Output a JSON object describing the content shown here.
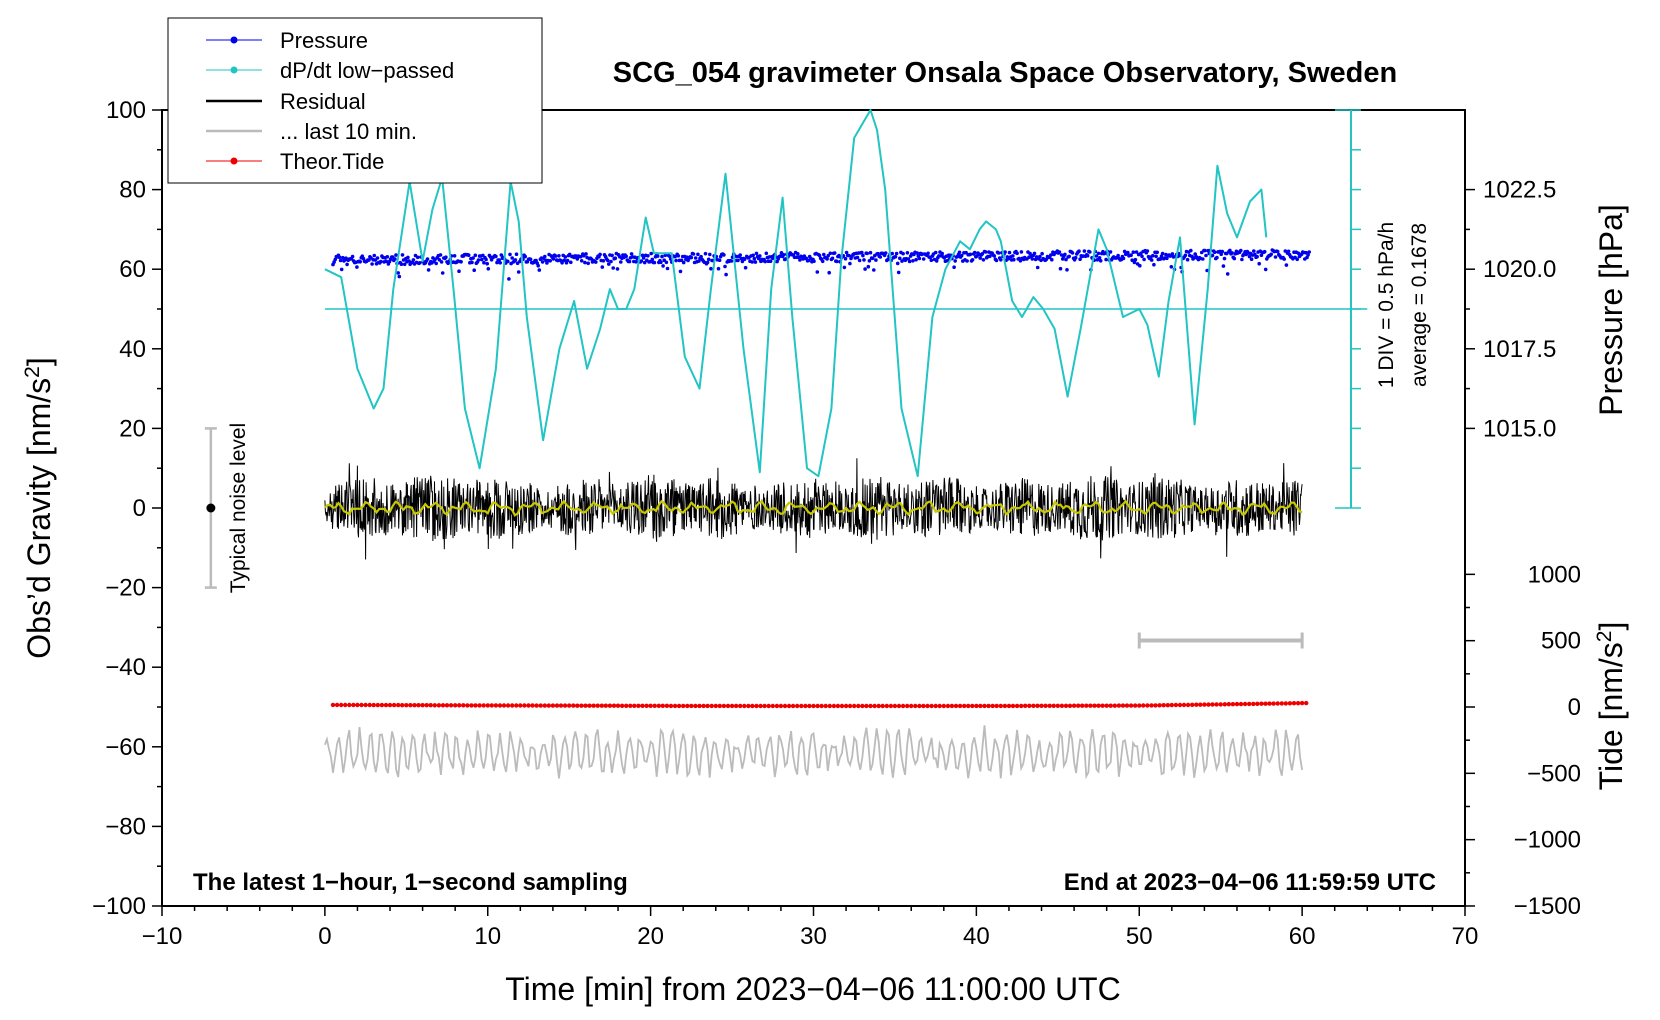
{
  "chart_data": {
    "type": "line",
    "title": "SCG_054 gravimeter Onsala Space Observatory, Sweden",
    "xlabel": "Time [min] from 2023−04−06 11:00:00 UTC",
    "ylabel_left": "Obs’d Gravity [nm/s",
    "ylabel_left_sup": "2",
    "ylabel_left_end": "]",
    "ylabel_right_pressure": "Pressure [hPa]",
    "ylabel_right_tide": "Tide [nm/s",
    "ylabel_right_tide_sup": "2",
    "ylabel_right_tide_end": "]",
    "xlim": [
      -10,
      70
    ],
    "ylim_left": [
      -100,
      100
    ],
    "x_ticks": [
      "−10",
      "0",
      "10",
      "20",
      "30",
      "40",
      "50",
      "60",
      "70"
    ],
    "y_ticks_left": [
      "100",
      "80",
      "60",
      "40",
      "20",
      "0",
      "−20",
      "−40",
      "−60",
      "−80",
      "−100"
    ],
    "pressure_ticks": [
      "1022.5",
      "1020.0",
      "1017.5",
      "1015.0"
    ],
    "pressure_tick_values": [
      1022.5,
      1020.0,
      1017.5,
      1015.0
    ],
    "pressure_to_left_scale": {
      "p0": 1020.0,
      "y0": 60,
      "per_hpa": 8
    },
    "tide_ticks": [
      "1000",
      "500",
      "0",
      "−500",
      "−1000",
      "−1500"
    ],
    "tide_tick_values": [
      1000,
      500,
      0,
      -500,
      -1000,
      -1500
    ],
    "tide_to_left_scale": {
      "t0": 0,
      "y0": -50,
      "per_unit": 0.03333
    },
    "legend": [
      {
        "label": "Pressure",
        "color": "#0000ee",
        "marker": true
      },
      {
        "label": "dP/dt low−passed",
        "color": "#22c4c4",
        "marker": true
      },
      {
        "label": "Residual",
        "color": "#000000",
        "marker": false
      },
      {
        "label": "... last 10 min.",
        "color": "#bbbbbb",
        "marker": false
      },
      {
        "label": "Theor.Tide",
        "color": "#ee0000",
        "marker": true
      }
    ],
    "annotations": {
      "bottom_left": "The latest 1−hour, 1−second sampling",
      "bottom_right": "End at 2023−04−06 11:59:59 UTC",
      "noise_label": "Typical noise level",
      "div_label": "1 DIV = 0.5 hPa/h",
      "average_label": "average = 0.1678"
    },
    "noise_bar": {
      "x": -7,
      "y_low": -20,
      "y_high": 20,
      "center": 0
    },
    "dpdt_baseline_y": 50,
    "dpdt_scale_bar": {
      "x": 63,
      "y_top": 100,
      "y_bottom": 0,
      "divisions": 10
    },
    "last10_bar": {
      "x_start": 50,
      "x_end": 60,
      "y": -33.3
    },
    "colors": {
      "pressure": "#0000ee",
      "dpdt": "#22c4c4",
      "residual": "#000000",
      "smoothed": "#c8c800",
      "last10": "#bbbbbb",
      "tide": "#ee0000"
    },
    "series": {
      "dpdt": {
        "x": [
          0,
          1,
          2,
          3,
          3.6,
          4.2,
          5.2,
          6,
          6.6,
          7.2,
          7.9,
          8.6,
          9.5,
          10.5,
          11.4,
          11.9,
          12.4,
          13.4,
          14.4,
          15.3,
          16.1,
          16.9,
          17.5,
          18,
          18.5,
          19,
          19.7,
          20.2,
          21.3,
          22.1,
          23,
          23.7,
          24.6,
          25.2,
          25.7,
          26.7,
          27.4,
          28.1,
          28.7,
          29.6,
          30.3,
          31.1,
          31.7,
          32.5,
          33.5,
          33.9,
          34.4,
          35.4,
          36.4,
          37.3,
          38.1,
          39,
          39.6,
          40.2,
          40.6,
          41.2,
          41.5,
          42.2,
          42.8,
          43.5,
          44.1,
          44.8,
          45.6,
          46.4,
          47.5,
          48,
          49,
          50,
          50.5,
          51.2,
          51.8,
          52.5,
          53.4,
          54.2,
          54.8,
          55.4,
          56,
          56.8,
          57.5,
          57.8
        ],
        "y": [
          60,
          58,
          35,
          25,
          30,
          55,
          82,
          62,
          75,
          83,
          55,
          25,
          10,
          35,
          82,
          72,
          48,
          17,
          40,
          52,
          35,
          45,
          55,
          50,
          50,
          55,
          73,
          64,
          64,
          38,
          30,
          55,
          84,
          60,
          40,
          9,
          55,
          78,
          48,
          10,
          8,
          25,
          62,
          93,
          100,
          95,
          80,
          25,
          8,
          48,
          60,
          67,
          65,
          70,
          72,
          70,
          67,
          52,
          48,
          53,
          50,
          45,
          28,
          45,
          70,
          65,
          48,
          50,
          46,
          33,
          52,
          68,
          21,
          55,
          86,
          74,
          68,
          77,
          80,
          68
        ]
      },
      "tide": {
        "x": [
          0.5,
          60.5
        ],
        "y": [
          -49.5,
          -49.5
        ]
      }
    }
  }
}
